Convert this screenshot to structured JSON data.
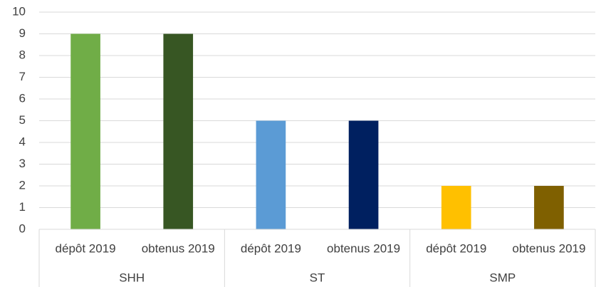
{
  "chart_data": {
    "type": "bar",
    "groups": [
      {
        "name": "SHH",
        "categories": [
          "dépôt 2019",
          "obtenus 2019"
        ],
        "values": [
          9,
          9
        ],
        "colors": [
          "#70ad47",
          "#375623"
        ]
      },
      {
        "name": "ST",
        "categories": [
          "dépôt 2019",
          "obtenus 2019"
        ],
        "values": [
          5,
          5
        ],
        "colors": [
          "#5b9bd5",
          "#002060"
        ]
      },
      {
        "name": "SMP",
        "categories": [
          "dépôt 2019",
          "obtenus 2019"
        ],
        "values": [
          2,
          2
        ],
        "colors": [
          "#ffc000",
          "#7f6000"
        ]
      }
    ],
    "ylim": [
      0,
      10
    ],
    "yticks": [
      0,
      1,
      2,
      3,
      4,
      5,
      6,
      7,
      8,
      9,
      10
    ],
    "grid": true
  }
}
